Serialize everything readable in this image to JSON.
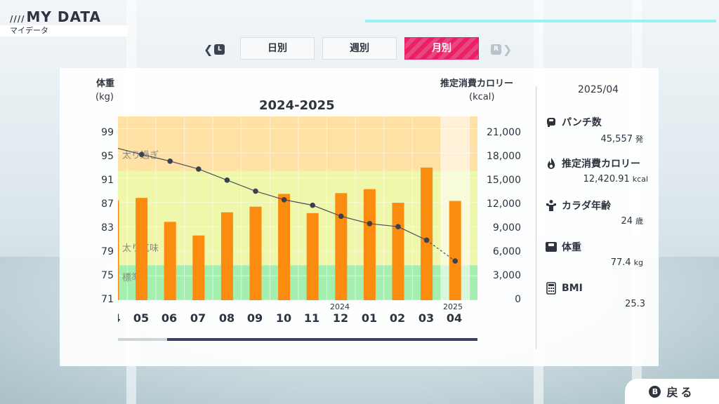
{
  "header": {
    "title": "MY DATA",
    "subtitle": "マイデータ"
  },
  "tabs": {
    "left_key": "L",
    "right_key": "R",
    "items": [
      {
        "label": "日別",
        "active": false
      },
      {
        "label": "週別",
        "active": false
      },
      {
        "label": "月別",
        "active": true
      }
    ]
  },
  "chart": {
    "left_axis_title": "体重",
    "left_axis_unit": "(kg)",
    "right_axis_title": "推定消費カロリー",
    "right_axis_unit": "(kcal)",
    "title": "2024-2025",
    "left_ticks": [
      "99",
      "95",
      "91",
      "87",
      "83",
      "79",
      "75",
      "71"
    ],
    "right_ticks": [
      "21,000",
      "18,000",
      "15,000",
      "12,000",
      "9,000",
      "6,000",
      "3,000",
      "0"
    ],
    "year_labels": [
      "2024",
      "2025"
    ],
    "month_labels": [
      "4",
      "05",
      "06",
      "07",
      "08",
      "09",
      "10",
      "11",
      "12",
      "01",
      "02",
      "03",
      "04"
    ],
    "zone_labels": [
      "太り過ぎ",
      "太り気味",
      "標準"
    ]
  },
  "chart_data": {
    "type": "bar",
    "categories": [
      "2024/04",
      "2024/05",
      "2024/06",
      "2024/07",
      "2024/08",
      "2024/09",
      "2024/10",
      "2024/11",
      "2024/12",
      "2025/01",
      "2025/02",
      "2025/03",
      "2025/04"
    ],
    "series": [
      {
        "name": "推定消費カロリー",
        "axis": "right",
        "type": "bar",
        "values": [
          12500,
          12800,
          9800,
          8100,
          11000,
          11700,
          13300,
          10900,
          13400,
          13900,
          12200,
          16600,
          12420.91
        ]
      },
      {
        "name": "体重",
        "axis": "left",
        "type": "line",
        "values": [
          96,
          94.8,
          93.7,
          92.4,
          90.6,
          88.8,
          87.4,
          86.5,
          84.7,
          83.5,
          83.0,
          80.8,
          77.4
        ]
      }
    ],
    "ylim_left": [
      71,
      101
    ],
    "ylim_right": [
      0,
      23000
    ],
    "zones": [
      {
        "label": "太り過ぎ",
        "from": 92.1,
        "to": 101,
        "color": "#ffe1a6"
      },
      {
        "label": "太り気味",
        "from": 76.7,
        "to": 92.1,
        "color": "#eef7aa"
      },
      {
        "label": "標準",
        "from": 71,
        "to": 76.7,
        "color": "#a4eeaf"
      }
    ],
    "bar_color": "#fb8c0f",
    "line_color": "#4a4f5a",
    "highlight_category": "2025/04"
  },
  "sidebar": {
    "date": "2025/04",
    "stats": [
      {
        "icon": "boxing-glove-icon",
        "label": "パンチ数",
        "value": "45,557",
        "unit": "発"
      },
      {
        "icon": "flame-icon",
        "label": "推定消費カロリー",
        "value": "12,420.91",
        "unit": "kcal"
      },
      {
        "icon": "muscle-icon",
        "label": "カラダ年齢",
        "value": "24",
        "unit": "歳"
      },
      {
        "icon": "scale-icon",
        "label": "体重",
        "value": "77.4",
        "unit": "kg"
      },
      {
        "icon": "calculator-icon",
        "label": "BMI",
        "value": "25.3",
        "unit": ""
      }
    ]
  },
  "footer": {
    "back_key": "B",
    "back_label": "戻る"
  }
}
